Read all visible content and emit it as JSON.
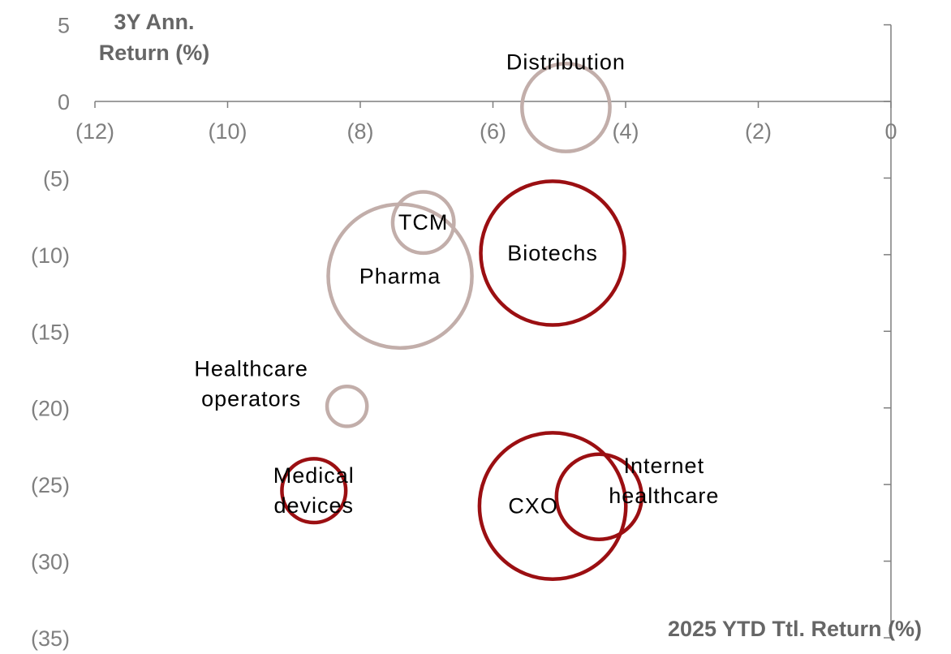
{
  "chart_data": {
    "type": "bubble",
    "xlabel": "2025 YTD Ttl. Return (%)",
    "ylabel": [
      "3Y Ann.",
      "Return (%)"
    ],
    "xlim": [
      -12,
      0
    ],
    "ylim": [
      -35,
      5
    ],
    "x_ticks": [
      {
        "value": -12,
        "label": "(12)"
      },
      {
        "value": -10,
        "label": "(10)"
      },
      {
        "value": -8,
        "label": "(8)"
      },
      {
        "value": -6,
        "label": "(6)"
      },
      {
        "value": -4,
        "label": "(4)"
      },
      {
        "value": -2,
        "label": "(2)"
      },
      {
        "value": 0,
        "label": "0"
      }
    ],
    "y_ticks": [
      {
        "value": 5,
        "label": "5"
      },
      {
        "value": 0,
        "label": "0"
      },
      {
        "value": -5,
        "label": "(5)"
      },
      {
        "value": -10,
        "label": "(10)"
      },
      {
        "value": -15,
        "label": "(15)"
      },
      {
        "value": -20,
        "label": "(20)"
      },
      {
        "value": -25,
        "label": "(25)"
      },
      {
        "value": -30,
        "label": "(30)"
      },
      {
        "value": -35,
        "label": "(35)"
      }
    ],
    "grid": false,
    "colors": {
      "red": "#9b0f12",
      "beige": "#c2aeaa"
    },
    "bubbles": [
      {
        "name": "Distribution",
        "label": [
          "Distribution"
        ],
        "x": -4.9,
        "y": -0.4,
        "size": 3.3,
        "color": "beige",
        "label_dx": 0,
        "label_dy": -56
      },
      {
        "name": "TCM",
        "label": [
          "TCM"
        ],
        "x": -7.05,
        "y": -7.9,
        "size": 2.3,
        "color": "beige",
        "label_dx": 0,
        "label_dy": 0
      },
      {
        "name": "Pharma",
        "label": [
          "Pharma"
        ],
        "x": -7.4,
        "y": -11.4,
        "size": 5.4,
        "color": "beige",
        "label_dx": 0,
        "label_dy": 0
      },
      {
        "name": "Biotechs",
        "label": [
          "Biotechs"
        ],
        "x": -5.1,
        "y": -9.9,
        "size": 5.4,
        "color": "red",
        "label_dx": 0,
        "label_dy": 0
      },
      {
        "name": "Healthcare operators",
        "label": [
          "Healthcare",
          "operators"
        ],
        "x": -8.2,
        "y": -19.9,
        "size": 1.5,
        "color": "beige",
        "label_dx": -118,
        "label_dy": -28
      },
      {
        "name": "Medical devices",
        "label": [
          "Medical",
          "devices"
        ],
        "x": -8.7,
        "y": -25.4,
        "size": 2.4,
        "color": "red",
        "label_dx": 0,
        "label_dy": 0
      },
      {
        "name": "CXO",
        "label": [
          "CXO"
        ],
        "x": -5.1,
        "y": -26.4,
        "size": 5.5,
        "color": "red",
        "label_dx": -24,
        "label_dy": 0
      },
      {
        "name": "Internet healthcare",
        "label": [
          "Internet",
          "healthcare"
        ],
        "x": -4.4,
        "y": -25.8,
        "size": 3.2,
        "color": "red",
        "label_dx": 80,
        "label_dy": -20
      }
    ]
  }
}
